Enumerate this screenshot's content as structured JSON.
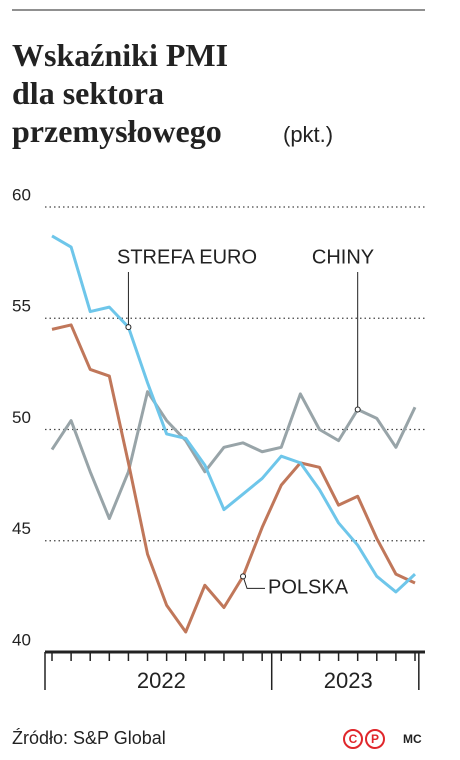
{
  "chart_data": {
    "type": "line",
    "title": [
      "Wskaźniki PMI",
      "dla sektora",
      "przemysłowego"
    ],
    "unit": "(pkt.)",
    "categories": [
      null,
      null,
      null,
      null,
      null,
      null,
      null,
      null,
      null,
      null,
      null,
      null,
      null,
      null,
      null,
      null,
      null,
      null,
      null,
      null
    ],
    "x_groups": [
      {
        "label": "2022",
        "count": 12
      },
      {
        "label": "2023",
        "count": 8
      }
    ],
    "series": [
      {
        "name": "STREFA EURO",
        "color": "#6ec6ea",
        "values": [
          58.7,
          58.2,
          55.3,
          55.5,
          54.6,
          52.1,
          49.8,
          49.6,
          48.4,
          46.4,
          47.1,
          47.8,
          48.8,
          48.5,
          47.3,
          45.8,
          44.8,
          43.4,
          42.7,
          43.5
        ]
      },
      {
        "name": "POLSKA",
        "color": "#c0775a",
        "values": [
          54.5,
          54.7,
          52.7,
          52.4,
          48.5,
          44.4,
          42.1,
          40.9,
          43.0,
          42.0,
          43.4,
          45.6,
          47.5,
          48.5,
          48.3,
          46.6,
          47.0,
          45.1,
          43.5,
          43.1
        ]
      },
      {
        "name": "CHINY",
        "color": "#98a4a8",
        "values": [
          49.1,
          50.4,
          48.1,
          46.0,
          48.1,
          51.7,
          50.4,
          49.5,
          48.1,
          49.2,
          49.4,
          49.0,
          49.2,
          51.6,
          50.0,
          49.5,
          50.9,
          50.5,
          49.2,
          51.0
        ]
      }
    ],
    "annotations": [
      {
        "series": 0,
        "index": 4
      },
      {
        "series": 2,
        "index": 16
      },
      {
        "series": 1,
        "index": 10
      }
    ],
    "ylim": [
      40,
      60
    ],
    "yticks": [
      40,
      45,
      50,
      55,
      60
    ],
    "grid": true,
    "source": "Źródło: S&P Global",
    "logo": [
      "C",
      "P"
    ],
    "author": "MC"
  }
}
